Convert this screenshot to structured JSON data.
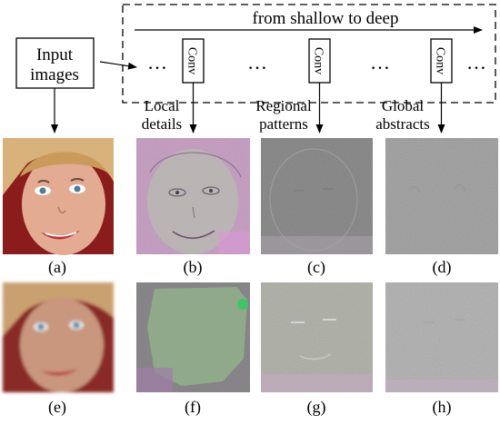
{
  "diagram": {
    "input_label_line1": "Input",
    "input_label_line2": "images",
    "arrow_caption": "from shallow to deep",
    "ellipsis": "…",
    "conv_labels": [
      "Conv",
      "Conv",
      "Conv"
    ],
    "stage_labels": [
      {
        "line1": "Local",
        "line2": "details"
      },
      {
        "line1": "Regional",
        "line2": "patterns"
      },
      {
        "line1": "Global",
        "line2": "abstracts"
      }
    ]
  },
  "panels": {
    "captions_row1": [
      "(a)",
      "(b)",
      "(c)",
      "(d)"
    ],
    "captions_row2": [
      "(e)",
      "(f)",
      "(g)",
      "(h)"
    ],
    "images_row1": [
      {
        "name": "face-image-a",
        "kind": "input-face",
        "tint": "#c89a86"
      },
      {
        "name": "feature-map-b",
        "kind": "feature-local",
        "tint": "#c7a6c4"
      },
      {
        "name": "feature-map-c",
        "kind": "feature-regional",
        "tint": "#8f8f8f"
      },
      {
        "name": "feature-map-d",
        "kind": "feature-global",
        "tint": "#a6a6a6"
      }
    ],
    "images_row2": [
      {
        "name": "face-image-e",
        "kind": "input-face-blurred",
        "tint": "#b78f79"
      },
      {
        "name": "feature-map-f",
        "kind": "feature-local-green",
        "tint": "#8fa58a"
      },
      {
        "name": "feature-map-g",
        "kind": "feature-regional",
        "tint": "#b2b4ac"
      },
      {
        "name": "feature-map-h",
        "kind": "feature-global",
        "tint": "#b6b6b6"
      }
    ]
  }
}
